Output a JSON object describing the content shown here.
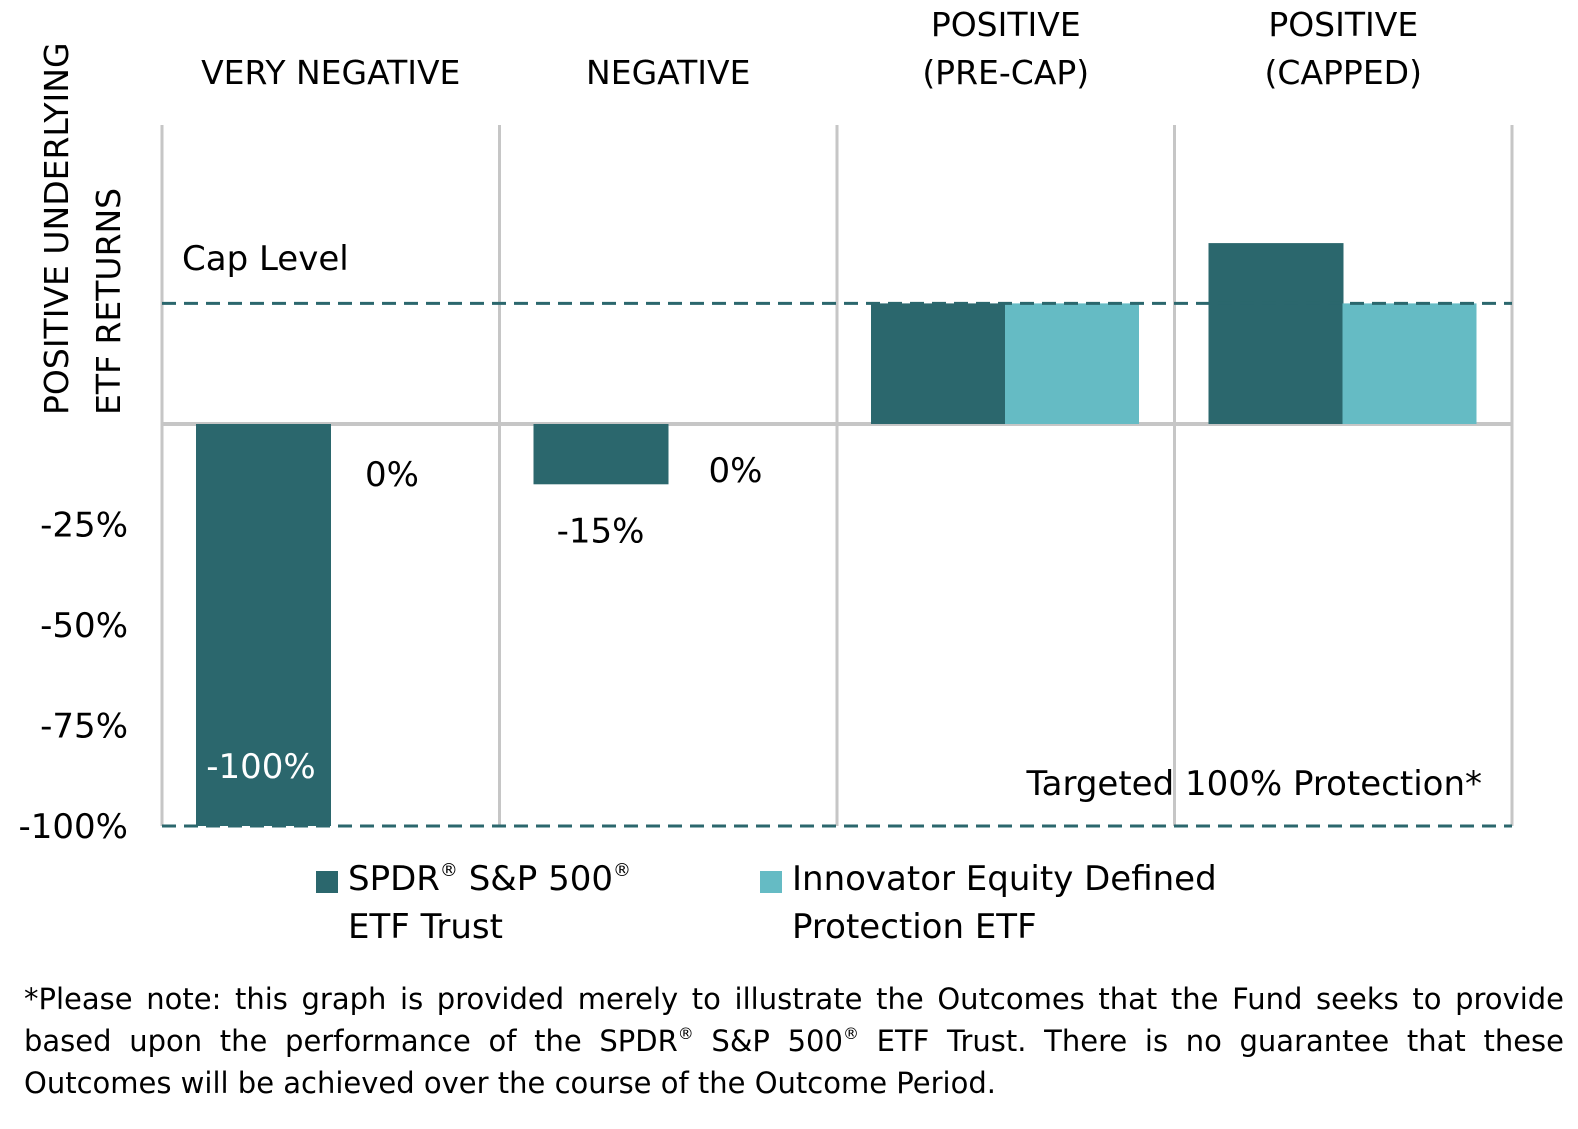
{
  "chart_data": {
    "type": "bar",
    "title": "",
    "ylabel": "POSITIVE UNDERLYING ETF RETURNS",
    "ylabel_lines": [
      "POSITIVE UNDERLYING",
      "ETF RETURNS"
    ],
    "xlabel": "",
    "categories": [
      "VERY NEGATIVE",
      "NEGATIVE",
      "POSITIVE (PRE-CAP)",
      "POSITIVE (CAPPED)"
    ],
    "category_lines": [
      [
        "VERY NEGATIVE"
      ],
      [
        "NEGATIVE"
      ],
      [
        "POSITIVE",
        "(PRE-CAP)"
      ],
      [
        "POSITIVE",
        "(CAPPED)"
      ]
    ],
    "ylim": [
      -100,
      50
    ],
    "y_ticks": [
      -25,
      -50,
      -75,
      -100
    ],
    "y_tick_labels": [
      "-25%",
      "-50%",
      "-75%",
      "-100%"
    ],
    "grid": "vertical category separators",
    "cap_level": 30,
    "series": [
      {
        "name": "SPDR® S&P 500® ETF Trust",
        "color": "#2b676d",
        "values": [
          -100,
          -15,
          30,
          45
        ],
        "labels": [
          "-100%",
          "-15%",
          "",
          ""
        ]
      },
      {
        "name": "Innovator Equity Defined Protection ETF",
        "color": "#65bbc4",
        "values": [
          0,
          0,
          30,
          30
        ],
        "labels": [
          "0%",
          "0%",
          "",
          ""
        ]
      }
    ],
    "annotations": {
      "cap_level": "Cap Level",
      "protection": "Targeted 100% Protection*"
    },
    "legend_position": "bottom"
  },
  "legend": {
    "items": [
      {
        "line1_a": "SPDR",
        "reg": "®",
        "line1_b": " S&P 500",
        "line2": "ETF Trust",
        "color": "#2b676d"
      },
      {
        "line1": "Innovator Equity Defined",
        "line2": "Protection ETF",
        "color": "#65bbc4"
      }
    ]
  },
  "footnote": {
    "part1": "*Please note: this graph is provided merely to illustrate the Outcomes that the Fund seeks to provide based upon the performance of the SPDR",
    "reg": "®",
    "part2": " S&P 500",
    "part3": " ETF Trust. There is no guarantee that these Outcomes will be achieved over the course of the Outcome Period."
  },
  "colors": {
    "dark_teal": "#2b676d",
    "light_teal": "#65bbc4",
    "grid": "#c6c6c6"
  }
}
